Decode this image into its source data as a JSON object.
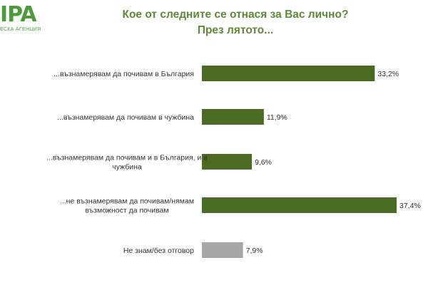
{
  "logo": {
    "mark": "IPA",
    "subtitle": "ЕСКА АГЕНЦИЯ"
  },
  "chart_data": {
    "type": "bar",
    "orientation": "horizontal",
    "title": "Кое от следните се отнася за Вас лично?",
    "subtitle": "През лятото...",
    "xlabel": "",
    "ylabel": "",
    "xlim": [
      0,
      40
    ],
    "grid": false,
    "legend": "none",
    "categories": [
      [
        "...възнамерявам да почивам в България"
      ],
      [
        "...възнамерявам да почивам в чужбина"
      ],
      [
        "...възнамерявам да почивам и в България, и в",
        "чужбина"
      ],
      [
        "...не възнамерявам да почивам/нямам",
        "възможност да почивам"
      ],
      [
        "Не знам/без отговор"
      ]
    ],
    "values": [
      33.2,
      11.9,
      9.6,
      37.4,
      7.9
    ],
    "value_labels": [
      "33,2%",
      "11,9%",
      "9,6%",
      "37,4%",
      "7,9%"
    ],
    "colors": [
      "#4a6b22",
      "#4a6b22",
      "#4a6b22",
      "#4a6b22",
      "#a6a6a6"
    ]
  }
}
